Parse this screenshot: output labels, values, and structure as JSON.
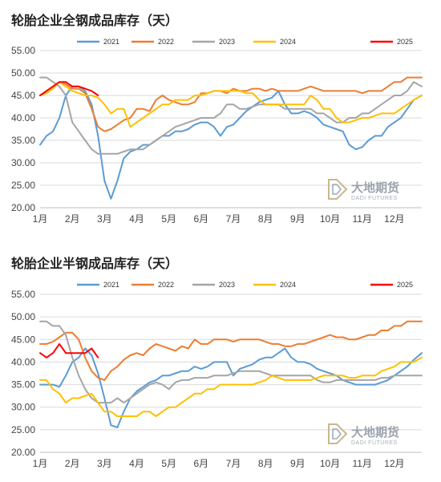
{
  "watermark": {
    "name_cn": "大地期货",
    "name_en": "DADI FUTURES"
  },
  "chart_data": [
    {
      "type": "line",
      "title": "轮胎企业全钢成品库存（天）",
      "xlabel": "",
      "ylabel": "",
      "x_ticks": [
        "1月",
        "2月",
        "3月",
        "4月",
        "5月",
        "6月",
        "7月",
        "8月",
        "9月",
        "10月",
        "11月",
        "12月"
      ],
      "y_ticks": [
        "20.00",
        "25.00",
        "30.00",
        "35.00",
        "40.00",
        "45.00",
        "50.00",
        "55.00"
      ],
      "ylim": [
        20,
        55
      ],
      "xlim": [
        1,
        12.85
      ],
      "grid": true,
      "legend": "top",
      "series": [
        {
          "name": "2021",
          "color": "#5b9bd5",
          "x": [
            1.0,
            1.2,
            1.4,
            1.6,
            1.8,
            2.0,
            2.2,
            2.4,
            2.6,
            2.8,
            3.0,
            3.2,
            3.4,
            3.6,
            3.8,
            4.0,
            4.2,
            4.4,
            4.6,
            4.8,
            5.0,
            5.2,
            5.4,
            5.6,
            5.8,
            6.0,
            6.2,
            6.4,
            6.6,
            6.8,
            7.0,
            7.2,
            7.4,
            7.6,
            7.8,
            8.0,
            8.2,
            8.4,
            8.6,
            8.8,
            9.0,
            9.2,
            9.4,
            9.6,
            9.8,
            10.0,
            10.2,
            10.4,
            10.6,
            10.8,
            11.0,
            11.2,
            11.4,
            11.6,
            11.8,
            12.0,
            12.2,
            12.4,
            12.6,
            12.85
          ],
          "y": [
            34,
            36,
            37,
            40,
            45,
            47,
            47,
            46,
            43,
            36,
            26,
            22,
            26,
            31,
            32.5,
            33,
            34,
            34,
            35,
            36,
            36,
            37,
            37,
            37.5,
            38.5,
            39,
            39,
            38,
            36,
            38,
            38.5,
            40,
            41.5,
            42.5,
            43.5,
            44,
            44.5,
            46,
            43,
            41,
            41,
            41.5,
            41,
            40,
            38.5,
            38,
            37.5,
            37,
            34,
            33,
            33.5,
            35,
            36,
            36,
            38,
            39,
            40,
            42,
            44,
            45
          ]
        },
        {
          "name": "2022",
          "color": "#ed7d31",
          "x": [
            1.0,
            1.2,
            1.4,
            1.6,
            1.8,
            2.0,
            2.2,
            2.4,
            2.6,
            2.8,
            3.0,
            3.2,
            3.4,
            3.6,
            3.8,
            4.0,
            4.2,
            4.4,
            4.6,
            4.8,
            5.0,
            5.2,
            5.4,
            5.6,
            5.8,
            6.0,
            6.2,
            6.4,
            6.6,
            6.8,
            7.0,
            7.2,
            7.4,
            7.6,
            7.8,
            8.0,
            8.2,
            8.4,
            8.6,
            8.8,
            9.0,
            9.2,
            9.4,
            9.6,
            9.8,
            10.0,
            10.2,
            10.4,
            10.6,
            10.8,
            11.0,
            11.2,
            11.4,
            11.6,
            11.8,
            12.0,
            12.2,
            12.4,
            12.6,
            12.85
          ],
          "y": [
            45,
            46,
            47,
            48,
            47.5,
            46.5,
            46.5,
            45.5,
            42,
            38,
            37,
            37.5,
            38.5,
            39.5,
            40,
            42,
            42,
            41.5,
            44,
            45,
            44,
            43.5,
            43,
            43,
            43.5,
            45.5,
            45.5,
            46,
            46,
            45.5,
            46.5,
            46,
            46,
            46.5,
            46.5,
            46,
            46.5,
            46,
            46,
            46,
            46,
            46.5,
            47,
            46.5,
            46,
            46,
            46,
            46,
            46,
            46,
            45.5,
            46,
            46,
            46,
            47,
            48,
            48,
            49,
            49,
            49
          ]
        },
        {
          "name": "2023",
          "color": "#a5a5a5",
          "x": [
            1.0,
            1.2,
            1.4,
            1.6,
            1.8,
            2.0,
            2.2,
            2.4,
            2.6,
            2.8,
            3.0,
            3.2,
            3.4,
            3.6,
            3.8,
            4.0,
            4.2,
            4.4,
            4.6,
            4.8,
            5.0,
            5.2,
            5.4,
            5.6,
            5.8,
            6.0,
            6.2,
            6.4,
            6.6,
            6.8,
            7.0,
            7.2,
            7.4,
            7.6,
            7.8,
            8.0,
            8.2,
            8.4,
            8.6,
            8.8,
            9.0,
            9.2,
            9.4,
            9.6,
            9.8,
            10.0,
            10.2,
            10.4,
            10.6,
            10.8,
            11.0,
            11.2,
            11.4,
            11.6,
            11.8,
            12.0,
            12.2,
            12.4,
            12.6,
            12.85
          ],
          "y": [
            49,
            49,
            48,
            47,
            45,
            39,
            37,
            35,
            33,
            32,
            32,
            32,
            32,
            32.5,
            33,
            33,
            33,
            34,
            35,
            36,
            37,
            38,
            38.5,
            39,
            39.5,
            40,
            40,
            40,
            41,
            43,
            43,
            42,
            42,
            42.5,
            43,
            43,
            43,
            43,
            42,
            42,
            42,
            42,
            42,
            41,
            41,
            40,
            39,
            39,
            40,
            40,
            41,
            41,
            42,
            43,
            44,
            45,
            45,
            46,
            48,
            47
          ]
        },
        {
          "name": "2024",
          "color": "#ffc000",
          "x": [
            1.0,
            1.2,
            1.4,
            1.6,
            1.8,
            2.0,
            2.2,
            2.4,
            2.6,
            2.8,
            3.0,
            3.2,
            3.4,
            3.6,
            3.8,
            4.0,
            4.2,
            4.4,
            4.6,
            4.8,
            5.0,
            5.2,
            5.4,
            5.6,
            5.8,
            6.0,
            6.2,
            6.4,
            6.6,
            6.8,
            7.0,
            7.2,
            7.4,
            7.6,
            7.8,
            8.0,
            8.2,
            8.4,
            8.6,
            8.8,
            9.0,
            9.2,
            9.4,
            9.6,
            9.8,
            10.0,
            10.2,
            10.4,
            10.6,
            10.8,
            11.0,
            11.2,
            11.4,
            11.6,
            11.8,
            12.0,
            12.2,
            12.4,
            12.6,
            12.85
          ],
          "y": [
            45,
            45.5,
            46.5,
            48,
            47,
            46,
            45.5,
            45,
            45,
            44.5,
            43,
            41,
            42,
            42,
            38,
            39,
            40,
            41,
            42,
            43,
            43,
            44,
            44,
            44,
            45,
            45,
            45.5,
            46,
            46,
            46,
            46,
            46,
            45.5,
            45.5,
            44,
            43,
            43,
            43,
            43,
            43,
            43,
            43,
            45,
            44,
            42,
            42,
            40,
            39,
            39,
            39.5,
            40,
            40,
            40.5,
            41,
            41,
            41,
            42,
            43,
            44,
            45
          ]
        },
        {
          "name": "2025",
          "color": "#ff0000",
          "x": [
            1.0,
            1.2,
            1.4,
            1.6,
            1.8,
            2.0,
            2.2,
            2.4,
            2.6,
            2.8
          ],
          "y": [
            45,
            46,
            47,
            48,
            48,
            47,
            47,
            46.5,
            46,
            45
          ]
        }
      ]
    },
    {
      "type": "line",
      "title": "轮胎企业半钢成品库存（天）",
      "xlabel": "",
      "ylabel": "",
      "x_ticks": [
        "1月",
        "2月",
        "3月",
        "4月",
        "5月",
        "6月",
        "7月",
        "8月",
        "9月",
        "10月",
        "11月",
        "12月"
      ],
      "y_ticks": [
        "20.00",
        "25.00",
        "30.00",
        "35.00",
        "40.00",
        "45.00",
        "50.00",
        "55.00"
      ],
      "ylim": [
        20,
        55
      ],
      "xlim": [
        1,
        12.85
      ],
      "grid": true,
      "legend": "top",
      "series": [
        {
          "name": "2021",
          "color": "#5b9bd5",
          "x": [
            1.0,
            1.2,
            1.4,
            1.6,
            1.8,
            2.0,
            2.2,
            2.4,
            2.6,
            2.8,
            3.0,
            3.2,
            3.4,
            3.6,
            3.8,
            4.0,
            4.2,
            4.4,
            4.6,
            4.8,
            5.0,
            5.2,
            5.4,
            5.6,
            5.8,
            6.0,
            6.2,
            6.4,
            6.6,
            6.8,
            7.0,
            7.2,
            7.4,
            7.6,
            7.8,
            8.0,
            8.2,
            8.4,
            8.6,
            8.8,
            9.0,
            9.2,
            9.4,
            9.6,
            9.8,
            10.0,
            10.2,
            10.4,
            10.6,
            10.8,
            11.0,
            11.2,
            11.4,
            11.6,
            11.8,
            12.0,
            12.2,
            12.4,
            12.6,
            12.85
          ],
          "y": [
            35,
            35,
            35,
            34.5,
            37,
            40,
            41,
            43,
            41.5,
            37.5,
            32,
            26,
            25.5,
            29,
            32,
            33.5,
            34.5,
            35.5,
            36,
            37,
            37,
            37.5,
            38,
            38,
            39,
            38.5,
            39,
            40,
            40,
            40,
            37,
            38.5,
            39,
            39.5,
            40.5,
            41,
            41,
            42,
            43,
            41,
            40,
            40,
            39.5,
            38.5,
            38,
            37.5,
            37,
            36,
            35.5,
            35,
            35,
            35,
            35,
            35.5,
            36,
            37,
            38,
            39,
            40.5,
            42
          ]
        },
        {
          "name": "2022",
          "color": "#ed7d31",
          "x": [
            1.0,
            1.2,
            1.4,
            1.6,
            1.8,
            2.0,
            2.2,
            2.4,
            2.6,
            2.8,
            3.0,
            3.2,
            3.4,
            3.6,
            3.8,
            4.0,
            4.2,
            4.4,
            4.6,
            4.8,
            5.0,
            5.2,
            5.4,
            5.6,
            5.8,
            6.0,
            6.2,
            6.4,
            6.6,
            6.8,
            7.0,
            7.2,
            7.4,
            7.6,
            7.8,
            8.0,
            8.2,
            8.4,
            8.6,
            8.8,
            9.0,
            9.2,
            9.4,
            9.6,
            9.8,
            10.0,
            10.2,
            10.4,
            10.6,
            10.8,
            11.0,
            11.2,
            11.4,
            11.6,
            11.8,
            12.0,
            12.2,
            12.4,
            12.6,
            12.85
          ],
          "y": [
            44,
            44,
            44.5,
            45.5,
            46.5,
            46.5,
            45,
            41,
            38,
            36.5,
            36,
            38,
            39,
            40.5,
            41.5,
            42,
            41.5,
            43,
            44,
            43.5,
            43,
            42.5,
            43.5,
            43,
            45,
            44,
            44,
            45,
            45,
            45,
            44.5,
            45,
            45,
            45,
            45,
            44.5,
            44,
            44,
            43.5,
            43.5,
            44,
            44,
            44.5,
            45,
            45.5,
            46,
            45.5,
            45.5,
            45,
            45,
            45.5,
            46,
            46,
            47,
            47,
            48,
            48,
            49,
            49,
            49
          ]
        },
        {
          "name": "2023",
          "color": "#a5a5a5",
          "x": [
            1.0,
            1.2,
            1.4,
            1.6,
            1.8,
            2.0,
            2.2,
            2.4,
            2.6,
            2.8,
            3.0,
            3.2,
            3.4,
            3.6,
            3.8,
            4.0,
            4.2,
            4.4,
            4.6,
            4.8,
            5.0,
            5.2,
            5.4,
            5.6,
            5.8,
            6.0,
            6.2,
            6.4,
            6.6,
            6.8,
            7.0,
            7.2,
            7.4,
            7.6,
            7.8,
            8.0,
            8.2,
            8.4,
            8.6,
            8.8,
            9.0,
            9.2,
            9.4,
            9.6,
            9.8,
            10.0,
            10.2,
            10.4,
            10.6,
            10.8,
            11.0,
            11.2,
            11.4,
            11.6,
            11.8,
            12.0,
            12.2,
            12.4,
            12.6,
            12.85
          ],
          "y": [
            49,
            49,
            48,
            48,
            46,
            41,
            37,
            34,
            32,
            31,
            31,
            31,
            32,
            31,
            32,
            33,
            34,
            35,
            35.5,
            35,
            34,
            35.5,
            36,
            36,
            36.5,
            36.5,
            36.5,
            37,
            37,
            37,
            37.5,
            38,
            38,
            38,
            38,
            37.5,
            37,
            37,
            37,
            37,
            37,
            37,
            37,
            36,
            35.5,
            35.5,
            36,
            36,
            36,
            36,
            36,
            36,
            36,
            36.5,
            36.5,
            37,
            37,
            37,
            37,
            37
          ]
        },
        {
          "name": "2024",
          "color": "#ffc000",
          "x": [
            1.0,
            1.2,
            1.4,
            1.6,
            1.8,
            2.0,
            2.2,
            2.4,
            2.6,
            2.8,
            3.0,
            3.2,
            3.4,
            3.6,
            3.8,
            4.0,
            4.2,
            4.4,
            4.6,
            4.8,
            5.0,
            5.2,
            5.4,
            5.6,
            5.8,
            6.0,
            6.2,
            6.4,
            6.6,
            6.8,
            7.0,
            7.2,
            7.4,
            7.6,
            7.8,
            8.0,
            8.2,
            8.4,
            8.6,
            8.8,
            9.0,
            9.2,
            9.4,
            9.6,
            9.8,
            10.0,
            10.2,
            10.4,
            10.6,
            10.8,
            11.0,
            11.2,
            11.4,
            11.6,
            11.8,
            12.0,
            12.2,
            12.4,
            12.6,
            12.85
          ],
          "y": [
            36,
            36,
            34,
            33,
            31,
            32,
            32,
            32.5,
            33,
            31,
            29,
            29,
            28,
            28,
            28,
            28,
            29,
            29,
            28,
            29,
            30,
            30,
            31,
            32,
            33,
            33,
            34,
            34,
            35,
            35,
            35,
            35,
            35,
            35,
            35.5,
            36,
            37,
            36.5,
            36,
            36,
            36,
            36,
            36,
            36.5,
            37,
            37,
            37,
            37,
            36.5,
            36.5,
            37,
            37,
            37,
            38,
            38.5,
            39,
            40,
            40,
            40,
            41
          ]
        },
        {
          "name": "2025",
          "color": "#ff0000",
          "x": [
            1.0,
            1.2,
            1.4,
            1.6,
            1.8,
            2.0,
            2.2,
            2.4,
            2.6,
            2.8
          ],
          "y": [
            42,
            41,
            42,
            44,
            42,
            42,
            42,
            42,
            43,
            41
          ]
        }
      ]
    }
  ]
}
